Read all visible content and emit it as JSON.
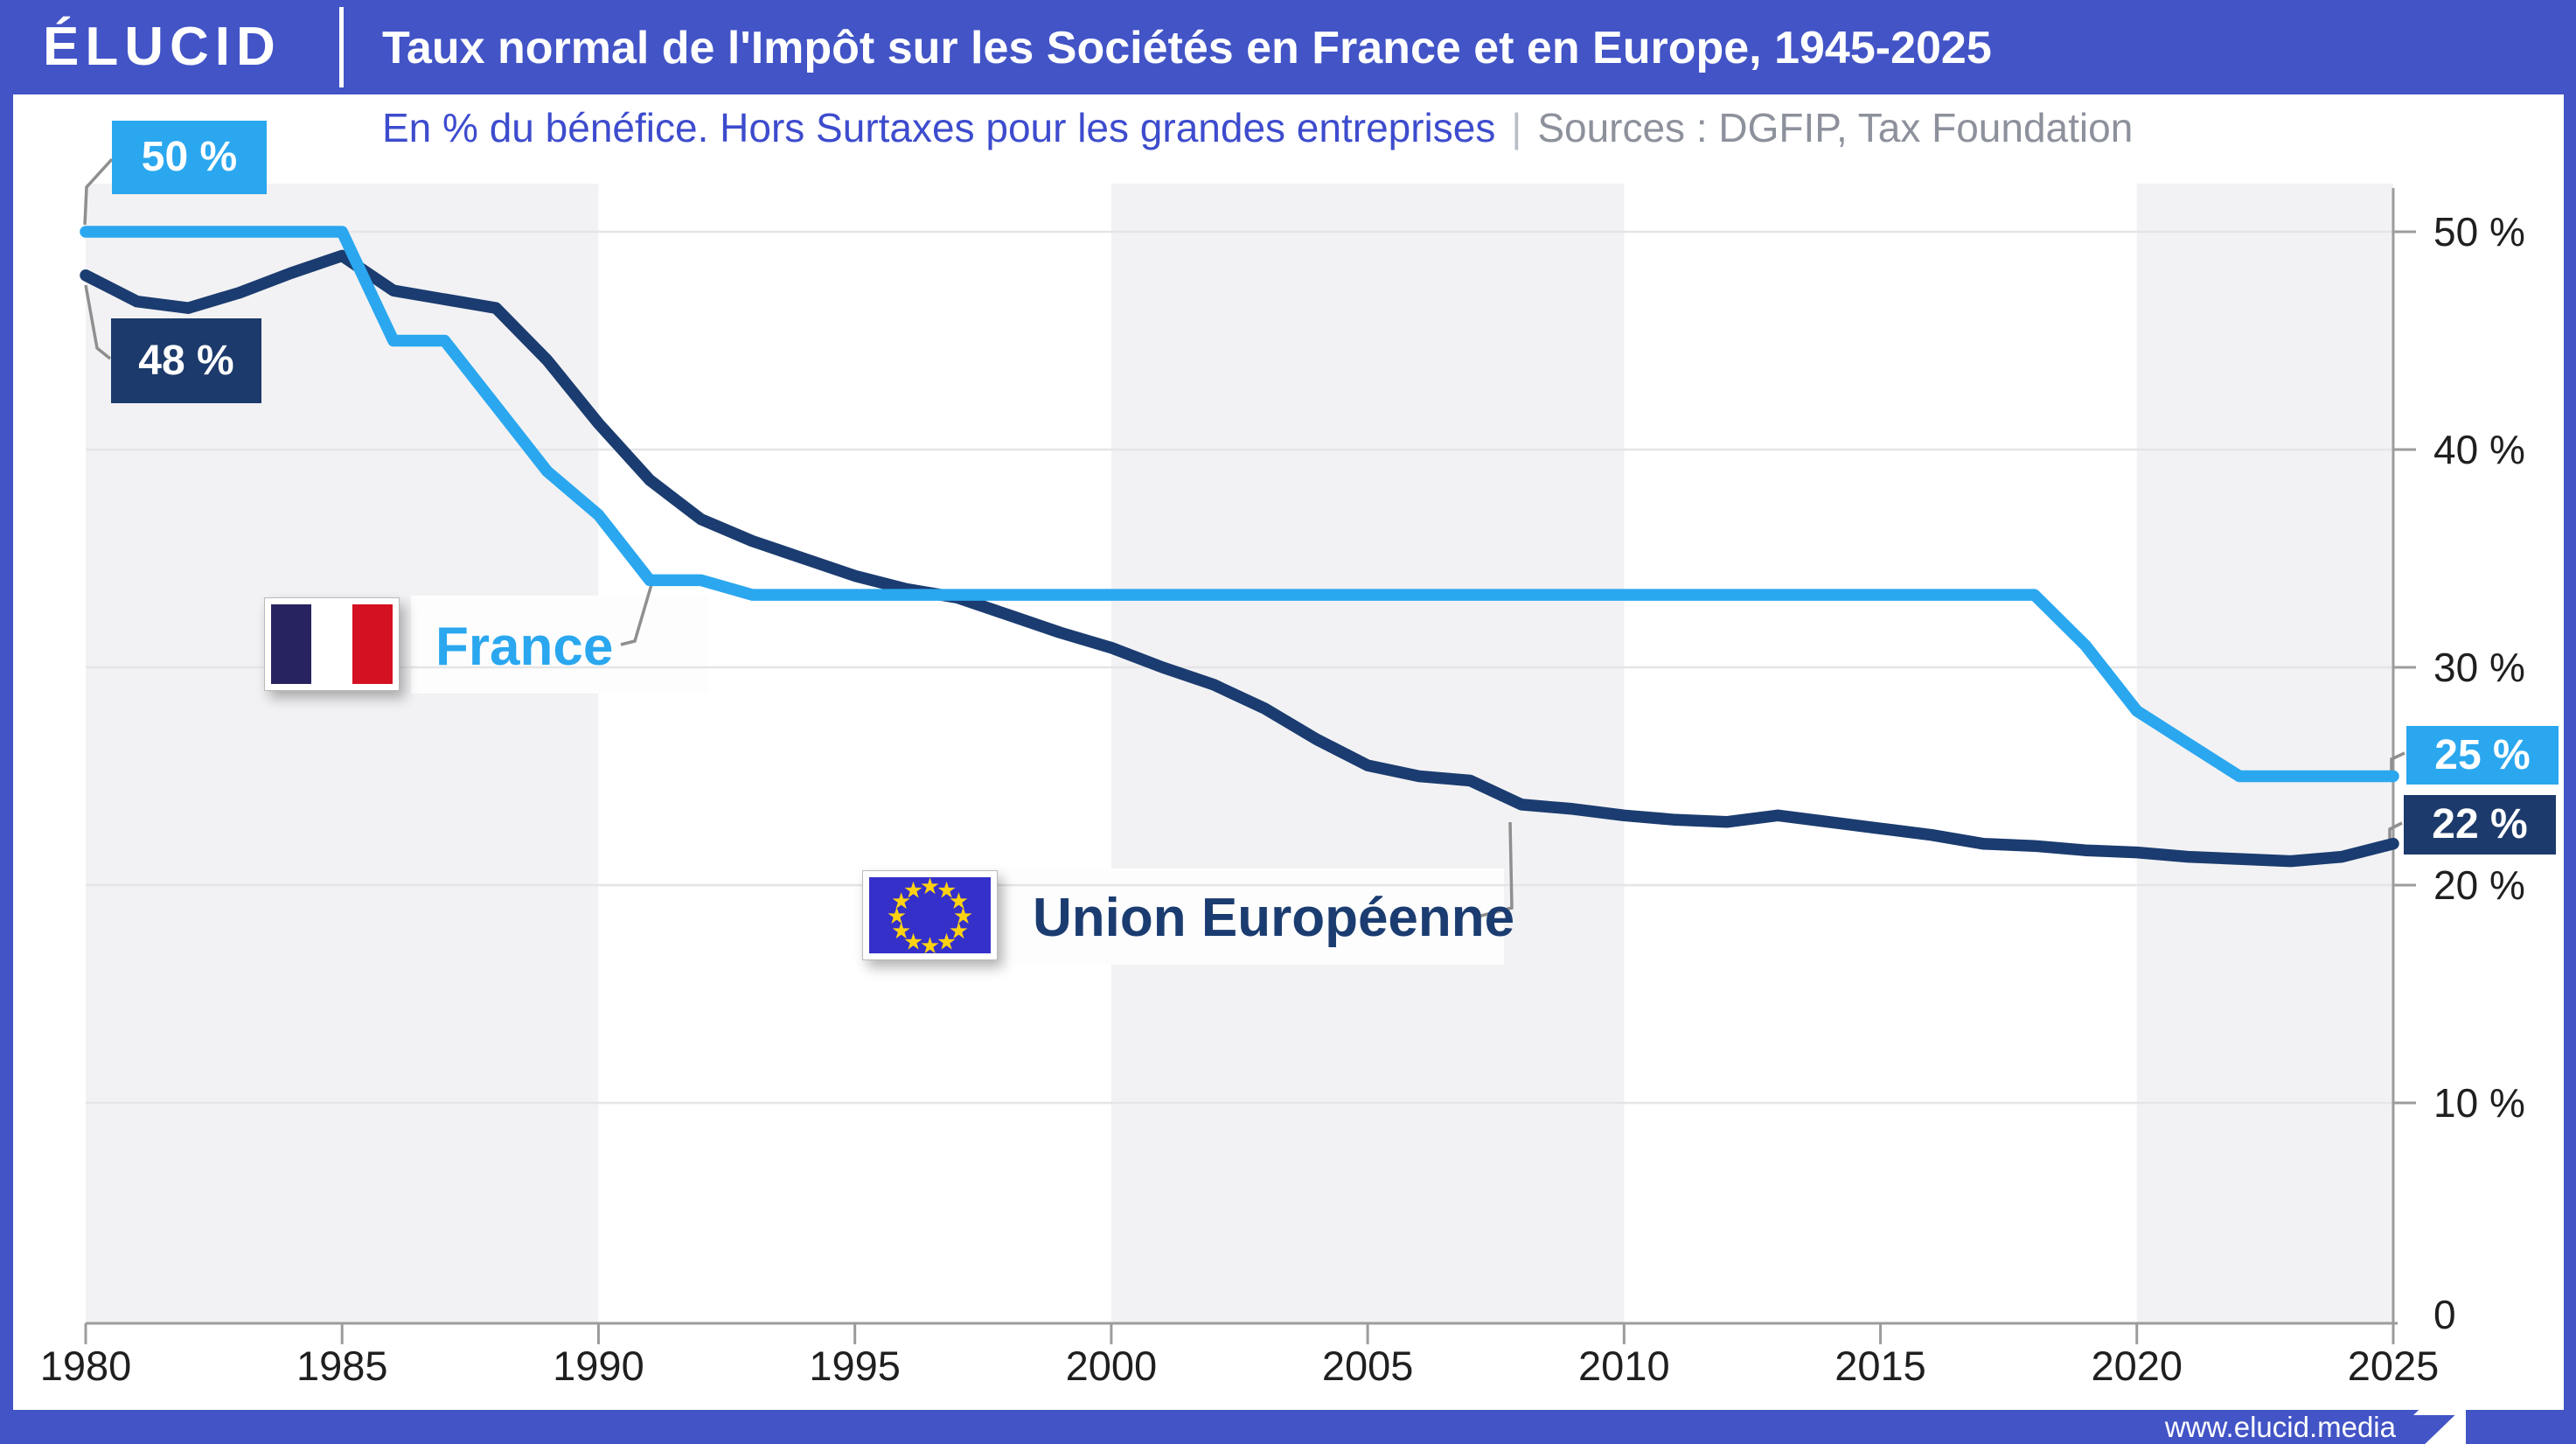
{
  "header": {
    "logo": "ÉLUCID",
    "title": "Taux normal de l'Impôt sur les Sociétés en France et en Europe, 1945-2025"
  },
  "subtitle": {
    "text": "En % du bénéfice. Hors Surtaxes pour les grandes entreprises",
    "separator": "|",
    "source": "Sources : DGFIP, Tax Foundation"
  },
  "badges": {
    "france_start": "50 %",
    "eu_start": "48 %",
    "france_end": "25 %",
    "eu_end": "22 %"
  },
  "legend": {
    "france": "France",
    "eu": "Union Européenne"
  },
  "footer": {
    "url": "www.elucid.media"
  },
  "colors": {
    "header_blue": "#4254c6",
    "france_blue": "#2aa7ef",
    "eu_navy": "#1b3c70",
    "subtitle_blue": "#3d4ccd",
    "source_gray": "#8d919c",
    "band_gray": "#f2f2f4",
    "grid_gray": "#e5e5e8",
    "axis_gray": "#9c9c9c",
    "tick_text": "#1f1f1f",
    "callout_gray": "#8f8f8f",
    "eu_flag_blue": "#3430c9",
    "star_yellow": "#ffd211",
    "fr_flag_navy": "#272361",
    "fr_flag_red": "#d41122",
    "label_plate_white": "#fdfdfe"
  },
  "chart_data": {
    "type": "line",
    "title": "Taux normal de l'Impôt sur les Sociétés en France et en Europe, 1945-2025",
    "ylabel": "En % du bénéfice",
    "x_start": 1980,
    "x_end": 2025,
    "x": [
      1980,
      1981,
      1982,
      1983,
      1984,
      1985,
      1986,
      1987,
      1988,
      1989,
      1990,
      1991,
      1992,
      1993,
      1994,
      1995,
      1996,
      1997,
      1998,
      1999,
      2000,
      2001,
      2002,
      2003,
      2004,
      2005,
      2006,
      2007,
      2008,
      2009,
      2010,
      2011,
      2012,
      2013,
      2014,
      2015,
      2016,
      2017,
      2018,
      2019,
      2020,
      2021,
      2022,
      2023,
      2024,
      2025
    ],
    "series": [
      {
        "name": "Union Européenne",
        "color": "#1b3c70",
        "values": [
          48.0,
          46.8,
          46.5,
          47.2,
          48.1,
          48.9,
          47.3,
          46.9,
          46.5,
          44.1,
          41.2,
          38.6,
          36.8,
          35.8,
          35.0,
          34.2,
          33.6,
          33.2,
          32.4,
          31.6,
          30.9,
          30.0,
          29.2,
          28.1,
          26.7,
          25.5,
          25.0,
          24.8,
          23.7,
          23.5,
          23.2,
          23.0,
          22.9,
          23.2,
          22.9,
          22.6,
          22.3,
          21.9,
          21.8,
          21.6,
          21.5,
          21.3,
          21.2,
          21.1,
          21.3,
          21.9
        ]
      },
      {
        "name": "France",
        "color": "#2aa7ef",
        "values": [
          50,
          50,
          50,
          50,
          50,
          50,
          45,
          45,
          42,
          39,
          37,
          34,
          34,
          33.33,
          33.33,
          33.33,
          33.33,
          33.33,
          33.33,
          33.33,
          33.33,
          33.33,
          33.33,
          33.33,
          33.33,
          33.33,
          33.33,
          33.33,
          33.33,
          33.33,
          33.33,
          33.33,
          33.33,
          33.33,
          33.33,
          33.33,
          33.33,
          33.33,
          33.33,
          31,
          28,
          26.5,
          25,
          25,
          25,
          25
        ]
      }
    ],
    "xticks": [
      1980,
      1985,
      1990,
      1995,
      2000,
      2005,
      2010,
      2015,
      2020,
      2025
    ],
    "ytick_values": [
      50,
      40,
      30,
      20,
      10,
      0
    ],
    "ytick_labels": [
      "50 %",
      "40 %",
      "30 %",
      "20 %",
      "10 %",
      "0"
    ],
    "ylim": [
      0,
      52.2
    ],
    "grid": true,
    "legend_position": "on-chart",
    "background_bands_decades": [
      [
        1980,
        1990
      ],
      [
        2000,
        2010
      ],
      [
        2020,
        2025
      ]
    ]
  }
}
